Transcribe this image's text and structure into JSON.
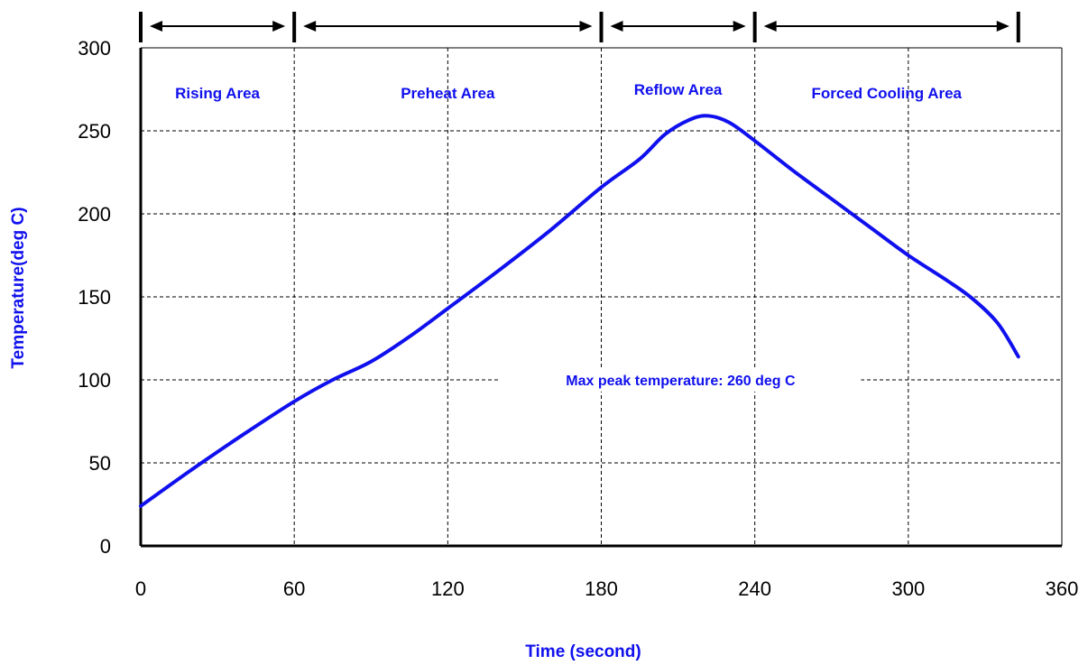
{
  "chart_data": {
    "type": "line",
    "title": "",
    "xlabel": "Time (second)",
    "ylabel": "Temperature(deg C)",
    "xlim": [
      0,
      360
    ],
    "ylim": [
      0,
      300
    ],
    "x_ticks": [
      0,
      60,
      120,
      180,
      240,
      300,
      360
    ],
    "y_ticks": [
      0,
      50,
      100,
      150,
      200,
      250,
      300
    ],
    "x_tick_labels": [
      "0",
      "60",
      "120",
      "180",
      "240",
      "300",
      "360"
    ],
    "y_tick_labels": [
      "0",
      "50",
      "100",
      "150",
      "200",
      "250",
      "300"
    ],
    "grid": true,
    "legend": "none",
    "series": [
      {
        "x": [
          0,
          20,
          40,
          60,
          75,
          90,
          105,
          120,
          140,
          160,
          180,
          195,
          205,
          215,
          222,
          230,
          240,
          255,
          270,
          285,
          300,
          315,
          325,
          335,
          343
        ],
        "y": [
          24,
          46,
          67,
          87,
          100,
          111,
          126,
          143,
          166,
          190,
          216,
          233,
          248,
          257,
          259,
          255,
          244,
          226,
          209,
          192,
          175,
          160,
          149,
          134,
          114
        ]
      }
    ],
    "regions": [
      {
        "label": "Rising Area",
        "x_start": 0,
        "x_end": 60
      },
      {
        "label": "Preheat Area",
        "x_start": 60,
        "x_end": 180
      },
      {
        "label": "Reflow Area",
        "x_start": 180,
        "x_end": 240
      },
      {
        "label": "Forced Cooling Area",
        "x_start": 240,
        "x_end": 343
      }
    ],
    "annotations": [
      {
        "text": "Max peak temperature: 260 deg C",
        "x": 211,
        "y": 100
      }
    ]
  },
  "colors": {
    "curve": "#1010ee",
    "label": "#1010ee",
    "grid": "#000000",
    "axis": "#000000"
  }
}
